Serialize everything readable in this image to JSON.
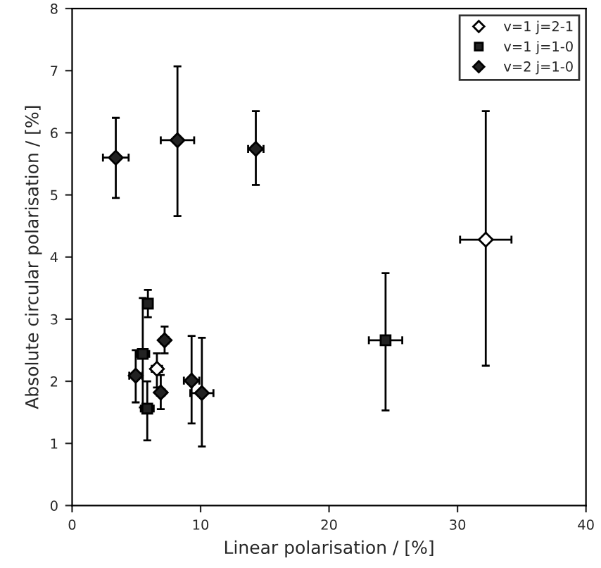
{
  "chart_data": {
    "type": "scatter",
    "xlabel": "Linear polarisation / [%]",
    "ylabel": "Absolute circular polarisation / [%]",
    "xlim": [
      0,
      40
    ],
    "ylim": [
      0,
      8
    ],
    "xticks": [
      0,
      10,
      20,
      30,
      40
    ],
    "yticks": [
      0,
      1,
      2,
      3,
      4,
      5,
      6,
      7,
      8
    ],
    "grid": false,
    "legend": "top right",
    "series": [
      {
        "name": "v=1 j=2-1",
        "color": "#ffffff",
        "marker": "diamond",
        "x": [
          32.2,
          6.6
        ],
        "values": [
          4.28,
          2.2
        ],
        "errors": [
          [
            2.25,
            6.35
          ],
          [
            1.9,
            2.45
          ]
        ],
        "xerrors": [
          2,
          0.4
        ]
      },
      {
        "name": "v=1 j=1-0",
        "color": "#222222",
        "marker": "square",
        "x": [
          5.9,
          5.5,
          24.4,
          5.85
        ],
        "values": [
          3.25,
          2.44,
          2.66,
          1.56
        ],
        "errors": [
          [
            3.03,
            3.47
          ],
          [
            1.58,
            3.34
          ],
          [
            1.53,
            3.74
          ],
          [
            1.05,
            2.0
          ]
        ],
        "xerrors": [
          0.3,
          0.5,
          1.3,
          0.5
        ]
      },
      {
        "name": "v=2 j=1-0",
        "color": "#222222",
        "marker": "diamond",
        "x": [
          3.4,
          8.2,
          14.3,
          4.95,
          6.9,
          7.2,
          9.3,
          10.1
        ],
        "values": [
          5.6,
          5.88,
          5.74,
          2.09,
          1.82,
          2.66,
          2.01,
          1.81
        ],
        "errors": [
          [
            4.95,
            6.24
          ],
          [
            4.66,
            7.07
          ],
          [
            5.16,
            6.35
          ],
          [
            1.66,
            2.5
          ],
          [
            1.55,
            2.1
          ],
          [
            2.45,
            2.88
          ],
          [
            1.32,
            2.73
          ],
          [
            0.95,
            2.7
          ]
        ],
        "xerrors": [
          1,
          1.3,
          0.6,
          0.5,
          0.3,
          0.3,
          0.6,
          0.9
        ]
      }
    ]
  }
}
